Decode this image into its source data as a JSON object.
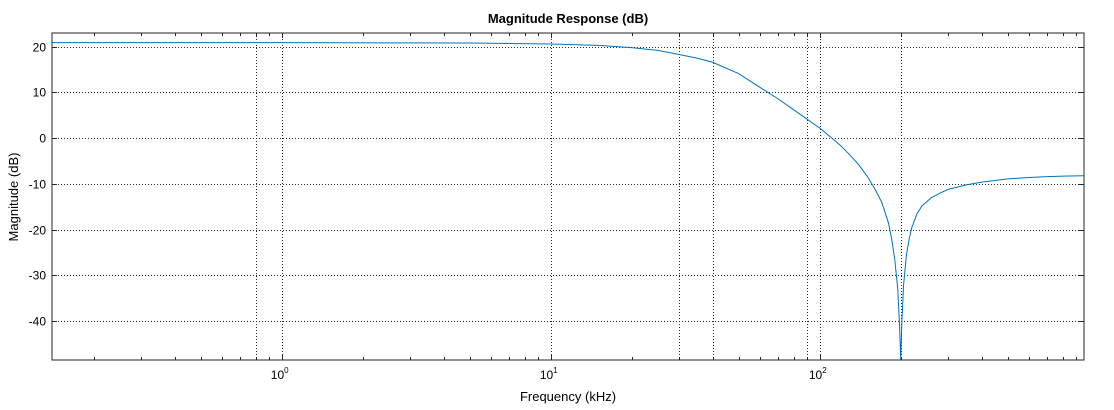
{
  "chart_data": {
    "type": "line",
    "title": "Magnitude Response (dB)",
    "xlabel": "Frequency (kHz)",
    "ylabel": "Magnitude (dB)",
    "xscale": "log",
    "xlim": [
      0.14,
      960
    ],
    "ylim": [
      -48.5,
      23
    ],
    "grid": true,
    "line_color": "#0072BD",
    "x_ticks": [
      {
        "value": 1,
        "base": "10",
        "exp": "0"
      },
      {
        "value": 10,
        "base": "10",
        "exp": "1"
      },
      {
        "value": 100,
        "base": "10",
        "exp": "2"
      }
    ],
    "y_ticks": [
      20,
      10,
      0,
      -10,
      -20,
      -30,
      -40
    ],
    "extra_x_gridlines": [
      0.8,
      30,
      40,
      90,
      200
    ],
    "series": [
      {
        "x": [
          0.14,
          1,
          5,
          10,
          15,
          20,
          25,
          30,
          35,
          40,
          50,
          60,
          70,
          80,
          90,
          100,
          110,
          120,
          130,
          140,
          150,
          160,
          170,
          180,
          185,
          190,
          195,
          198,
          200,
          202,
          205,
          210,
          215,
          220,
          230,
          240,
          260,
          280,
          300,
          350,
          400,
          500,
          600,
          700,
          800,
          960
        ],
        "y": [
          20.9,
          20.9,
          20.8,
          20.6,
          20.3,
          19.8,
          19.2,
          18.3,
          17.5,
          16.6,
          14.1,
          11.1,
          8.6,
          6.2,
          4.1,
          2.2,
          0.2,
          -1.7,
          -3.8,
          -5.9,
          -8.3,
          -11.0,
          -14.0,
          -18.5,
          -22.0,
          -26.5,
          -33.0,
          -41.0,
          -48.5,
          -40.0,
          -32.0,
          -25.5,
          -22.0,
          -19.5,
          -16.5,
          -14.8,
          -13.0,
          -12.0,
          -11.2,
          -10.2,
          -9.6,
          -8.9,
          -8.6,
          -8.4,
          -8.3,
          -8.2
        ]
      }
    ]
  }
}
